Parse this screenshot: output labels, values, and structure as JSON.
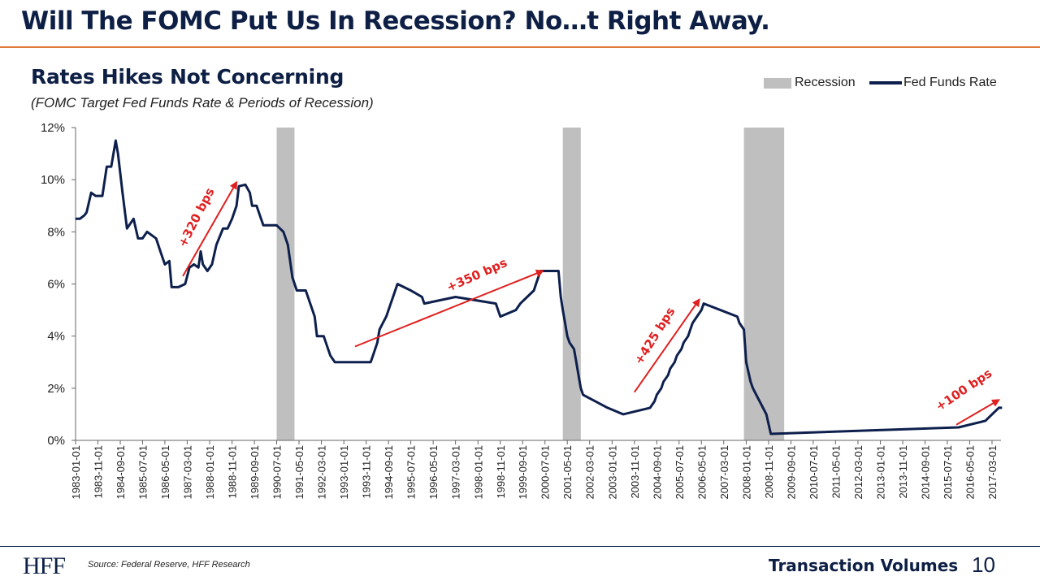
{
  "page": {
    "title": "Will The FOMC Put Us In Recession? No…t Right Away.",
    "chart_title": "Rates Hikes Not Concerning",
    "chart_subtitle": "(FOMC Target Fed Funds Rate & Periods of Recession)"
  },
  "legend": {
    "recession": "Recession",
    "fed_funds": "Fed Funds Rate"
  },
  "footer": {
    "logo": "HFF",
    "source": "Source: Federal Reserve, HFF Research",
    "section": "Transaction Volumes",
    "page_number": "10"
  },
  "colors": {
    "line": "#0d1f4c",
    "recession": "#bfbfbf",
    "annotation": "#e02020",
    "title": "#0d1f44",
    "rule": "#e07a3a"
  },
  "chart_data": {
    "type": "line",
    "title": "Rates Hikes Not Concerning",
    "subtitle": "(FOMC Target Fed Funds Rate & Periods of Recession)",
    "xlabel": "",
    "ylabel": "",
    "ylim": [
      0,
      12
    ],
    "yticks": [
      "0%",
      "2%",
      "4%",
      "6%",
      "8%",
      "10%",
      "12%"
    ],
    "xticks": [
      "1983-01-01",
      "1983-11-01",
      "1984-09-01",
      "1985-07-01",
      "1986-05-01",
      "1987-03-01",
      "1988-01-01",
      "1988-11-01",
      "1989-09-01",
      "1990-07-01",
      "1991-05-01",
      "1992-03-01",
      "1993-01-01",
      "1993-11-01",
      "1994-09-01",
      "1995-07-01",
      "1996-05-01",
      "1997-03-01",
      "1998-01-01",
      "1998-11-01",
      "1999-09-01",
      "2000-07-01",
      "2001-05-01",
      "2002-03-01",
      "2003-01-01",
      "2003-11-01",
      "2004-09-01",
      "2005-07-01",
      "2006-05-01",
      "2007-03-01",
      "2008-01-01",
      "2008-11-01",
      "2009-09-01",
      "2010-07-01",
      "2011-05-01",
      "2012-03-01",
      "2013-01-01",
      "2013-11-01",
      "2014-09-01",
      "2015-07-01",
      "2016-05-01",
      "2017-03-01"
    ],
    "legend_position": "top-right",
    "grid": false,
    "recessions": [
      {
        "start": "1990-07-01",
        "end": "1991-03-01"
      },
      {
        "start": "2001-03-01",
        "end": "2001-11-01"
      },
      {
        "start": "2007-12-01",
        "end": "2009-06-01"
      }
    ],
    "series": [
      {
        "name": "Fed Funds Rate",
        "points": [
          [
            "1983-01-01",
            8.5
          ],
          [
            "1983-03-01",
            8.5
          ],
          [
            "1983-05-01",
            8.63
          ],
          [
            "1983-06-01",
            8.75
          ],
          [
            "1983-08-01",
            9.5
          ],
          [
            "1983-10-01",
            9.38
          ],
          [
            "1984-01-01",
            9.38
          ],
          [
            "1984-03-01",
            10.5
          ],
          [
            "1984-05-01",
            10.5
          ],
          [
            "1984-07-01",
            11.5
          ],
          [
            "1984-08-01",
            11.0
          ],
          [
            "1984-10-01",
            9.5
          ],
          [
            "1984-12-01",
            8.13
          ],
          [
            "1985-03-01",
            8.5
          ],
          [
            "1985-05-01",
            7.75
          ],
          [
            "1985-07-01",
            7.75
          ],
          [
            "1985-09-01",
            8.0
          ],
          [
            "1986-01-01",
            7.75
          ],
          [
            "1986-03-01",
            7.25
          ],
          [
            "1986-05-01",
            6.75
          ],
          [
            "1986-07-01",
            6.88
          ],
          [
            "1986-08-01",
            5.88
          ],
          [
            "1986-11-01",
            5.88
          ],
          [
            "1987-02-01",
            6.0
          ],
          [
            "1987-04-01",
            6.63
          ],
          [
            "1987-06-01",
            6.75
          ],
          [
            "1987-08-01",
            6.63
          ],
          [
            "1987-09-01",
            7.25
          ],
          [
            "1987-10-01",
            6.75
          ],
          [
            "1987-12-01",
            6.5
          ],
          [
            "1988-02-01",
            6.75
          ],
          [
            "1988-04-01",
            7.5
          ],
          [
            "1988-07-01",
            8.13
          ],
          [
            "1988-09-01",
            8.13
          ],
          [
            "1988-11-01",
            8.5
          ],
          [
            "1989-01-01",
            9.0
          ],
          [
            "1989-02-01",
            9.75
          ],
          [
            "1989-05-01",
            9.81
          ],
          [
            "1989-07-01",
            9.5
          ],
          [
            "1989-08-01",
            9.0
          ],
          [
            "1989-10-01",
            9.0
          ],
          [
            "1989-12-01",
            8.5
          ],
          [
            "1990-01-01",
            8.25
          ],
          [
            "1990-07-01",
            8.25
          ],
          [
            "1990-10-01",
            8.0
          ],
          [
            "1990-12-01",
            7.5
          ],
          [
            "1991-02-01",
            6.25
          ],
          [
            "1991-04-01",
            5.75
          ],
          [
            "1991-08-01",
            5.75
          ],
          [
            "1991-10-01",
            5.25
          ],
          [
            "1991-12-01",
            4.75
          ],
          [
            "1992-01-01",
            4.0
          ],
          [
            "1992-04-01",
            4.0
          ],
          [
            "1992-05-01",
            3.75
          ],
          [
            "1992-07-01",
            3.25
          ],
          [
            "1992-09-01",
            3.0
          ],
          [
            "1994-01-01",
            3.0
          ],
          [
            "1994-02-01",
            3.25
          ],
          [
            "1994-04-01",
            3.75
          ],
          [
            "1994-05-01",
            4.25
          ],
          [
            "1994-08-01",
            4.75
          ],
          [
            "1994-11-01",
            5.5
          ],
          [
            "1995-01-01",
            6.0
          ],
          [
            "1995-07-01",
            5.75
          ],
          [
            "1995-12-01",
            5.5
          ],
          [
            "1996-01-01",
            5.25
          ],
          [
            "1997-03-01",
            5.5
          ],
          [
            "1998-09-01",
            5.25
          ],
          [
            "1998-10-01",
            5.0
          ],
          [
            "1998-11-01",
            4.75
          ],
          [
            "1999-06-01",
            5.0
          ],
          [
            "1999-08-01",
            5.25
          ],
          [
            "1999-11-01",
            5.5
          ],
          [
            "2000-02-01",
            5.75
          ],
          [
            "2000-03-01",
            6.0
          ],
          [
            "2000-05-01",
            6.5
          ],
          [
            "2001-01-01",
            6.5
          ],
          [
            "2001-02-01",
            5.5
          ],
          [
            "2001-03-01",
            5.0
          ],
          [
            "2001-04-01",
            4.5
          ],
          [
            "2001-05-01",
            4.0
          ],
          [
            "2001-06-01",
            3.75
          ],
          [
            "2001-08-01",
            3.5
          ],
          [
            "2001-09-01",
            3.0
          ],
          [
            "2001-10-01",
            2.5
          ],
          [
            "2001-11-01",
            2.0
          ],
          [
            "2001-12-01",
            1.75
          ],
          [
            "2002-11-01",
            1.25
          ],
          [
            "2003-06-01",
            1.0
          ],
          [
            "2004-06-01",
            1.25
          ],
          [
            "2004-08-01",
            1.5
          ],
          [
            "2004-09-01",
            1.75
          ],
          [
            "2004-11-01",
            2.0
          ],
          [
            "2004-12-01",
            2.25
          ],
          [
            "2005-02-01",
            2.5
          ],
          [
            "2005-03-01",
            2.75
          ],
          [
            "2005-05-01",
            3.0
          ],
          [
            "2005-06-01",
            3.25
          ],
          [
            "2005-08-01",
            3.5
          ],
          [
            "2005-09-01",
            3.75
          ],
          [
            "2005-11-01",
            4.0
          ],
          [
            "2005-12-01",
            4.25
          ],
          [
            "2006-01-01",
            4.5
          ],
          [
            "2006-03-01",
            4.75
          ],
          [
            "2006-05-01",
            5.0
          ],
          [
            "2006-06-01",
            5.25
          ],
          [
            "2007-09-01",
            4.75
          ],
          [
            "2007-10-01",
            4.5
          ],
          [
            "2007-12-01",
            4.25
          ],
          [
            "2008-01-01",
            3.0
          ],
          [
            "2008-03-01",
            2.25
          ],
          [
            "2008-04-01",
            2.0
          ],
          [
            "2008-10-01",
            1.0
          ],
          [
            "2008-12-01",
            0.25
          ],
          [
            "2015-12-01",
            0.5
          ],
          [
            "2016-12-01",
            0.75
          ],
          [
            "2017-03-01",
            1.0
          ],
          [
            "2017-06-01",
            1.25
          ]
        ]
      }
    ],
    "annotations": [
      {
        "text": "+320 bps"
      },
      {
        "text": "+350 bps"
      },
      {
        "text": "+425 bps"
      },
      {
        "text": "+100 bps"
      }
    ]
  }
}
